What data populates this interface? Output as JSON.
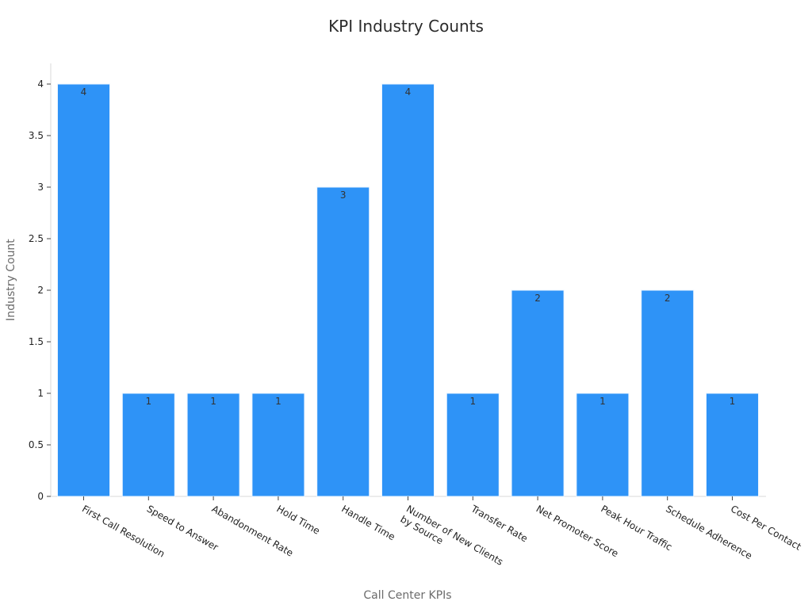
{
  "chart_data": {
    "type": "bar",
    "title": "KPI Industry Counts",
    "xlabel": "Call Center KPIs",
    "ylabel": "Industry Count",
    "categories": [
      "First Call Resolution",
      "Speed to Answer",
      "Abandonment Rate",
      "Hold Time",
      "Handle Time",
      "Number of New Clients\nby Source",
      "Transfer Rate",
      "Net Promoter Score",
      "Peak Hour Traffic",
      "Schedule Adherence",
      "Cost Per Contact"
    ],
    "values": [
      4,
      1,
      1,
      1,
      3,
      4,
      1,
      2,
      1,
      2,
      1
    ],
    "ylim": [
      0,
      4.2
    ],
    "yticks": [
      "0",
      "0.5",
      "1",
      "1.5",
      "2",
      "2.5",
      "3",
      "3.5",
      "4"
    ],
    "grid": false,
    "legend": "none",
    "bar_color": "#2e93f7",
    "bar_edge_color": "#eaf4ff"
  }
}
